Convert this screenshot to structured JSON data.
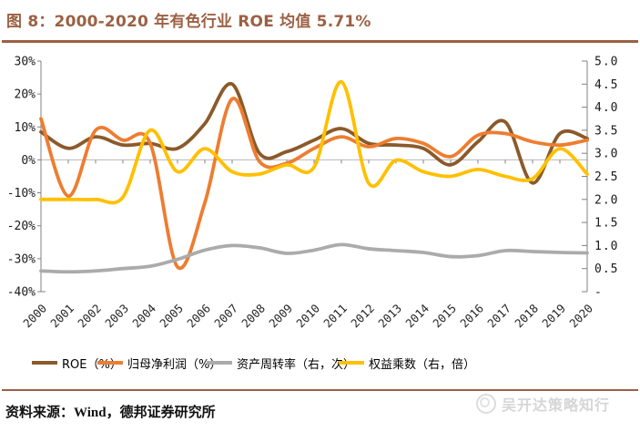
{
  "header": {
    "title": "图 8：2000-2020 年有色行业 ROE 均值 5.71%"
  },
  "footer": {
    "source_label": "资料来源：Wind，德邦证券研究所",
    "watermark_text": "吴开达策略知行"
  },
  "colors": {
    "accent_brown": "#9C6144",
    "axis_line": "#808080",
    "zero_line": "#BFBFBF",
    "tick_text": "#1a1a1a"
  },
  "chart_data": {
    "type": "line",
    "title": "图 8：2000-2020 年有色行业 ROE 均值 5.71%",
    "xlabel": "",
    "ylabel_left": "",
    "ylabel_right": "",
    "grid": false,
    "legend_position": "bottom",
    "smooth": true,
    "x_categories": [
      "2000",
      "2001",
      "2002",
      "2003",
      "2004",
      "2005",
      "2006",
      "2007",
      "2008",
      "2009",
      "2010",
      "2011",
      "2012",
      "2013",
      "2014",
      "2015",
      "2016",
      "2017",
      "2018",
      "2019",
      "2020"
    ],
    "left_axis": {
      "min": -40,
      "max": 30,
      "step": 10,
      "ticks": [
        "30%",
        "20%",
        "10%",
        "0%",
        "-10%",
        "-20%",
        "-30%",
        "-40%"
      ]
    },
    "right_axis": {
      "min": 0,
      "max": 5,
      "step": 0.5,
      "ticks": [
        "5.0",
        "4.5",
        "4.0",
        "3.5",
        "3.0",
        "2.5",
        "2.0",
        "1.5",
        "1.0",
        "0.5",
        "-"
      ]
    },
    "series": [
      {
        "id": "roe",
        "name": "ROE（%）",
        "axis": "left",
        "color": "#8B5A2B",
        "values": [
          8.5,
          3.5,
          7.0,
          4.5,
          5.0,
          3.5,
          11.0,
          23.0,
          2.0,
          2.5,
          6.0,
          9.5,
          5.0,
          4.5,
          3.5,
          -1.5,
          5.5,
          11.5,
          -7.0,
          8.0,
          6.5
        ]
      },
      {
        "id": "net_profit",
        "name": "归母净利润（%）",
        "axis": "left",
        "color": "#ED7D31",
        "values": [
          12.5,
          -11.0,
          9.0,
          6.0,
          5.0,
          -32.5,
          -13.0,
          18.5,
          -0.5,
          -1.0,
          3.5,
          7.0,
          4.0,
          6.5,
          5.0,
          1.0,
          7.5,
          8.0,
          5.5,
          4.5,
          6.0
        ]
      },
      {
        "id": "asset_turnover",
        "name": "资产周转率（右，次）",
        "axis": "right",
        "color": "#ABABAB",
        "values": [
          0.45,
          0.43,
          0.45,
          0.5,
          0.55,
          0.7,
          0.9,
          1.0,
          0.95,
          0.83,
          0.9,
          1.02,
          0.93,
          0.89,
          0.85,
          0.76,
          0.78,
          0.89,
          0.87,
          0.85,
          0.84
        ]
      },
      {
        "id": "equity_multiplier",
        "name": "权益乘数（右，倍）",
        "axis": "right",
        "color": "#FFC000",
        "values": [
          2.0,
          2.0,
          2.0,
          2.05,
          3.5,
          2.6,
          3.1,
          2.6,
          2.55,
          2.75,
          2.7,
          4.55,
          2.35,
          2.85,
          2.6,
          2.5,
          2.65,
          2.5,
          2.45,
          3.1,
          2.55
        ]
      }
    ]
  }
}
